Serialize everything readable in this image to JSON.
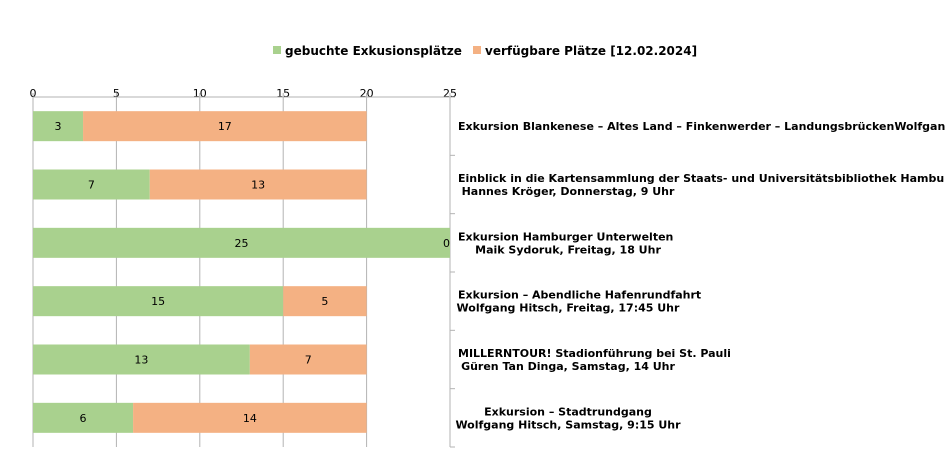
{
  "chart_data": {
    "type": "bar",
    "orientation": "horizontal",
    "stacked": true,
    "xlim": [
      0,
      25
    ],
    "x_ticks": [
      "0",
      "5",
      "10",
      "15",
      "20",
      "25"
    ],
    "grid": true,
    "legend_position": "top-center",
    "categories": [
      [
        "Exkursion Blankenese – Altes Land – Finkenwerder – LandungsbrückenWolfgang Hi..."
      ],
      [
        "Einblick in die Kartensammlung der Staats- und Universitätsbibliothek Hamburg",
        "Hannes Kröger, Donnerstag, 9 Uhr"
      ],
      [
        "Exkursion Hamburger Unterwelten",
        "Maik Sydoruk, Freitag, 18 Uhr"
      ],
      [
        "Exkursion – Abendliche Hafenrundfahrt",
        "Wolfgang Hitsch, Freitag, 17:45 Uhr"
      ],
      [
        "MILLERNTOUR! Stadionführung bei St. Pauli",
        "Güren Tan Dinga, Samstag, 14 Uhr"
      ],
      [
        "Exkursion – Stadtrundgang",
        "Wolfgang Hitsch, Samstag, 9:15 Uhr"
      ]
    ],
    "series": [
      {
        "name": "gebuchte Exkusionsplätze",
        "color": "#a9d18e",
        "values": [
          3,
          7,
          25,
          15,
          13,
          6
        ]
      },
      {
        "name": "verfügbare Plätze [12.02.2024]",
        "color": "#f4b183",
        "values": [
          17,
          13,
          0,
          5,
          7,
          14
        ]
      }
    ]
  }
}
